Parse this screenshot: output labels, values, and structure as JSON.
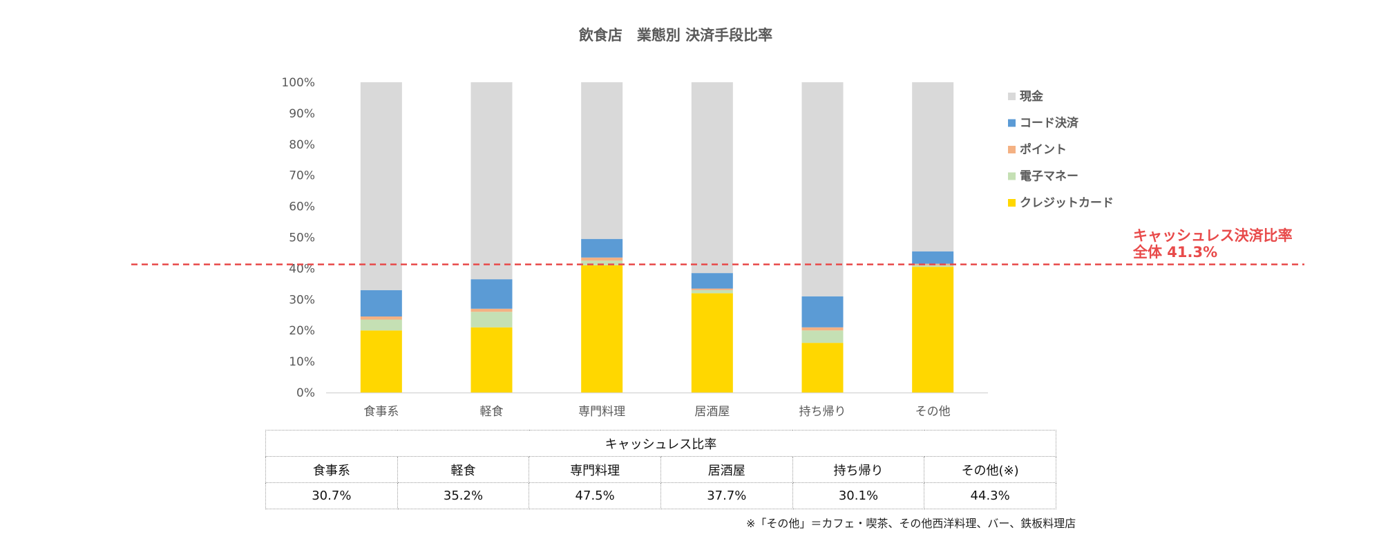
{
  "chart_data": {
    "type": "bar",
    "stacked": true,
    "title": "飲食店　業態別 決済手段比率",
    "categories": [
      "食事系",
      "軽食",
      "専門料理",
      "居酒屋",
      "持ち帰り",
      "その他"
    ],
    "series": [
      {
        "name": "クレジットカード",
        "color": "#ffd700",
        "values": [
          20.0,
          21.0,
          41.0,
          32.0,
          16.0,
          40.5
        ]
      },
      {
        "name": "電子マネー",
        "color": "#c5e0b4",
        "values": [
          3.5,
          5.0,
          1.5,
          1.0,
          4.0,
          0.5
        ]
      },
      {
        "name": "ポイント",
        "color": "#f4b183",
        "values": [
          1.0,
          1.0,
          1.0,
          0.5,
          1.0,
          0.5
        ]
      },
      {
        "name": "コード決済",
        "color": "#5b9bd5",
        "values": [
          8.5,
          9.5,
          6.0,
          5.0,
          10.0,
          4.0
        ]
      },
      {
        "name": "現金",
        "color": "#d9d9d9",
        "values": [
          67.0,
          63.5,
          50.5,
          61.5,
          69.0,
          54.5
        ]
      }
    ],
    "legend_order": [
      "現金",
      "コード決済",
      "ポイント",
      "電子マネー",
      "クレジットカード"
    ],
    "yticks": [
      "0%",
      "10%",
      "20%",
      "30%",
      "40%",
      "50%",
      "60%",
      "70%",
      "80%",
      "90%",
      "100%"
    ],
    "ylim": [
      0,
      100
    ],
    "reference_line": {
      "value": 41.3,
      "color": "#e84a4a",
      "label_line1": "キャッシュレス決済比率",
      "label_line2": "全体 41.3%"
    }
  },
  "table": {
    "header": "キャッシュレス比率",
    "columns": [
      "食事系",
      "軽食",
      "専門料理",
      "居酒屋",
      "持ち帰り",
      "その他(※)"
    ],
    "values": [
      "30.7%",
      "35.2%",
      "47.5%",
      "37.7%",
      "30.1%",
      "44.3%"
    ]
  },
  "note": "※「その他」＝カフェ・喫茶、その他西洋料理、バー、鉄板料理店"
}
